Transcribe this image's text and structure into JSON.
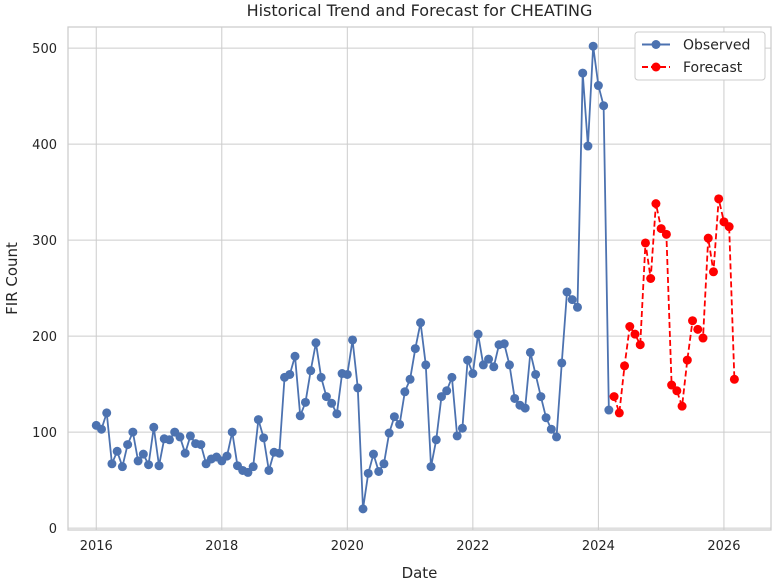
{
  "chart_data": {
    "type": "line",
    "title": "Historical Trend and Forecast for CHEATING",
    "xlabel": "Date",
    "ylabel": "FIR Count",
    "xlim": [
      2015.55,
      2026.75
    ],
    "ylim": [
      -2,
      522
    ],
    "x_ticks": [
      2016,
      2018,
      2020,
      2022,
      2024,
      2026
    ],
    "x_tick_labels": [
      "2016",
      "2018",
      "2020",
      "2022",
      "2024",
      "2026"
    ],
    "y_ticks": [
      0,
      100,
      200,
      300,
      400,
      500
    ],
    "y_tick_labels": [
      "0",
      "100",
      "200",
      "300",
      "400",
      "500"
    ],
    "grid": true,
    "legend_position": "top-right",
    "series": [
      {
        "name": "Observed",
        "color": "#4c72b0",
        "line_style": "solid",
        "marker": "circle",
        "start": "2016-01",
        "frequency": "monthly",
        "values": [
          107,
          103,
          120,
          67,
          80,
          64,
          87,
          100,
          70,
          77,
          66,
          105,
          65,
          93,
          92,
          100,
          95,
          78,
          96,
          88,
          87,
          67,
          72,
          74,
          70,
          75,
          100,
          65,
          60,
          58,
          64,
          113,
          94,
          60,
          79,
          78,
          157,
          160,
          179,
          117,
          131,
          164,
          193,
          157,
          137,
          130,
          119,
          161,
          160,
          196,
          146,
          20,
          57,
          77,
          59,
          67,
          99,
          116,
          108,
          142,
          155,
          187,
          214,
          170,
          64,
          92,
          137,
          143,
          157,
          96,
          104,
          175,
          161,
          202,
          170,
          176,
          168,
          191,
          192,
          170,
          135,
          128,
          125,
          183,
          160,
          137,
          115,
          103,
          95,
          172,
          246,
          238,
          230,
          474,
          398,
          502,
          461,
          440,
          123
        ]
      },
      {
        "name": "Forecast",
        "color": "#ff0000",
        "line_style": "dashed",
        "marker": "circle",
        "start": "2024-04",
        "frequency": "monthly",
        "values": [
          137,
          120,
          169,
          210,
          202,
          191,
          297,
          260,
          338,
          312,
          306,
          149,
          143,
          127,
          175,
          216,
          207,
          198,
          302,
          267,
          343,
          319,
          314,
          155
        ]
      }
    ]
  }
}
